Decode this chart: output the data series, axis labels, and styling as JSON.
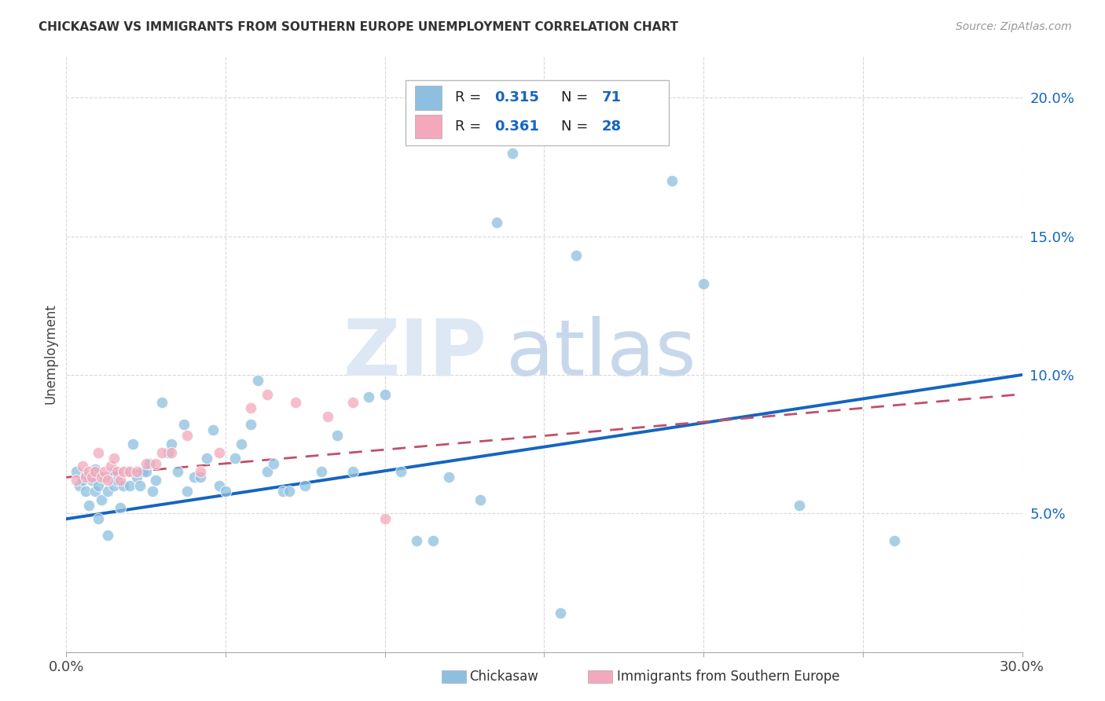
{
  "title": "CHICKASAW VS IMMIGRANTS FROM SOUTHERN EUROPE UNEMPLOYMENT CORRELATION CHART",
  "source": "Source: ZipAtlas.com",
  "ylabel": "Unemployment",
  "xmin": 0.0,
  "xmax": 0.3,
  "ymin": 0.0,
  "ymax": 0.215,
  "yticks": [
    0.05,
    0.1,
    0.15,
    0.2
  ],
  "ytick_labels": [
    "5.0%",
    "10.0%",
    "15.0%",
    "20.0%"
  ],
  "xticks": [
    0.0,
    0.05,
    0.1,
    0.15,
    0.2,
    0.25,
    0.3
  ],
  "xtick_labels": [
    "0.0%",
    "",
    "",
    "",
    "",
    "",
    "30.0%"
  ],
  "color_blue": "#8dc0e0",
  "color_pink": "#f4a8bc",
  "color_line_blue": "#1565c0",
  "color_line_pink": "#c0506a",
  "color_tick_blue": "#1565c0",
  "watermark_zip_color": "#dde8f4",
  "watermark_atlas_color": "#c8d8ec",
  "legend_box_color": "#e8e8e8",
  "blue_trend_x0": 0.0,
  "blue_trend_y0": 0.048,
  "blue_trend_x1": 0.3,
  "blue_trend_y1": 0.1,
  "pink_trend_x0": 0.0,
  "pink_trend_y0": 0.063,
  "pink_trend_x1": 0.3,
  "pink_trend_y1": 0.093,
  "blue_x": [
    0.003,
    0.004,
    0.005,
    0.006,
    0.006,
    0.007,
    0.007,
    0.008,
    0.009,
    0.009,
    0.01,
    0.01,
    0.011,
    0.012,
    0.013,
    0.013,
    0.015,
    0.015,
    0.016,
    0.017,
    0.018,
    0.019,
    0.02,
    0.021,
    0.022,
    0.023,
    0.024,
    0.025,
    0.026,
    0.027,
    0.028,
    0.03,
    0.032,
    0.033,
    0.035,
    0.037,
    0.038,
    0.04,
    0.042,
    0.044,
    0.046,
    0.048,
    0.05,
    0.053,
    0.055,
    0.058,
    0.06,
    0.063,
    0.065,
    0.068,
    0.07,
    0.075,
    0.08,
    0.085,
    0.09,
    0.095,
    0.1,
    0.105,
    0.11,
    0.115,
    0.12,
    0.13,
    0.14,
    0.155,
    0.16,
    0.19,
    0.2,
    0.23,
    0.26,
    0.155,
    0.135
  ],
  "blue_y": [
    0.065,
    0.06,
    0.062,
    0.058,
    0.064,
    0.053,
    0.063,
    0.062,
    0.058,
    0.066,
    0.048,
    0.06,
    0.055,
    0.063,
    0.042,
    0.058,
    0.065,
    0.06,
    0.062,
    0.052,
    0.06,
    0.065,
    0.06,
    0.075,
    0.063,
    0.06,
    0.065,
    0.065,
    0.068,
    0.058,
    0.062,
    0.09,
    0.072,
    0.075,
    0.065,
    0.082,
    0.058,
    0.063,
    0.063,
    0.07,
    0.08,
    0.06,
    0.058,
    0.07,
    0.075,
    0.082,
    0.098,
    0.065,
    0.068,
    0.058,
    0.058,
    0.06,
    0.065,
    0.078,
    0.065,
    0.092,
    0.093,
    0.065,
    0.04,
    0.04,
    0.063,
    0.055,
    0.18,
    0.014,
    0.143,
    0.17,
    0.133,
    0.053,
    0.04,
    0.185,
    0.155
  ],
  "pink_x": [
    0.003,
    0.005,
    0.006,
    0.007,
    0.008,
    0.009,
    0.01,
    0.011,
    0.012,
    0.013,
    0.014,
    0.015,
    0.016,
    0.017,
    0.018,
    0.02,
    0.022,
    0.025,
    0.028,
    0.03,
    0.033,
    0.038,
    0.042,
    0.048,
    0.058,
    0.063,
    0.072,
    0.082,
    0.09,
    0.1
  ],
  "pink_y": [
    0.062,
    0.067,
    0.063,
    0.065,
    0.063,
    0.065,
    0.072,
    0.063,
    0.065,
    0.062,
    0.067,
    0.07,
    0.065,
    0.062,
    0.065,
    0.065,
    0.065,
    0.068,
    0.068,
    0.072,
    0.072,
    0.078,
    0.065,
    0.072,
    0.088,
    0.093,
    0.09,
    0.085,
    0.09,
    0.048
  ]
}
